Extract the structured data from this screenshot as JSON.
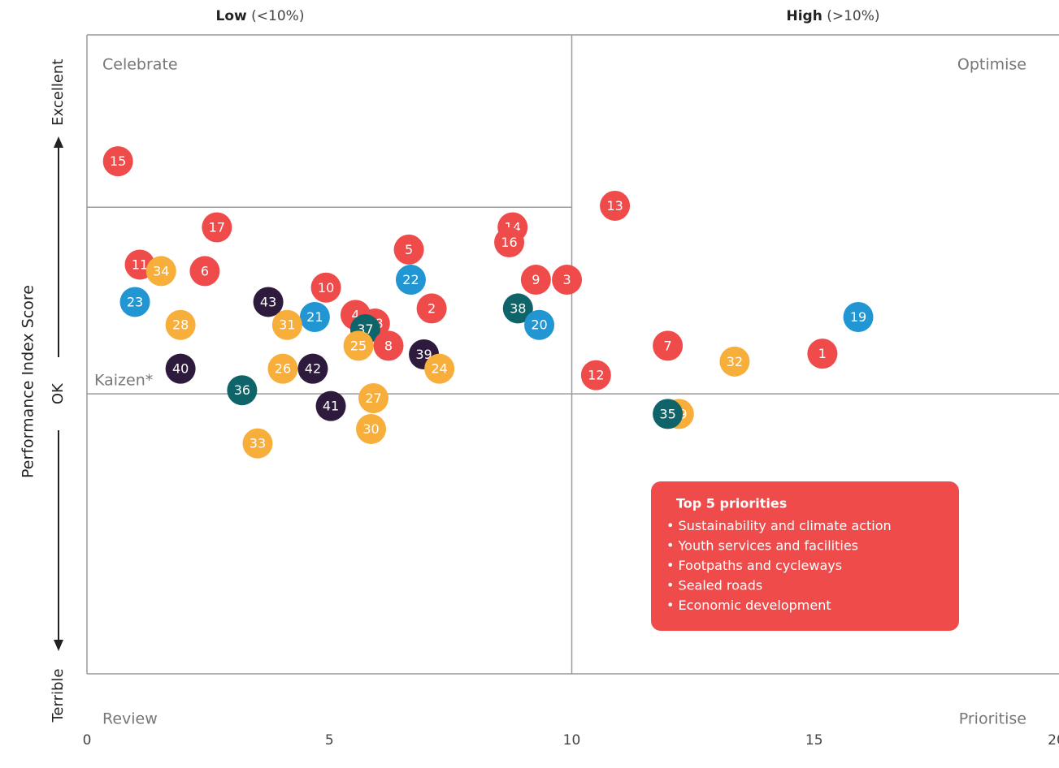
{
  "chart_data": {
    "type": "scatter",
    "y_axis_label": "Performance Index Score",
    "x_groups": [
      {
        "bold": "Low",
        "text": "(<10%)"
      },
      {
        "bold": "High",
        "text": "(>10%)"
      }
    ],
    "quadrants": {
      "top_left": "Celebrate",
      "top_right": "Optimise",
      "bottom_left": "Review",
      "bottom_right": "Prioritise",
      "middle_left": "Kaizen*"
    },
    "reference_lines": {
      "x": 10,
      "y": 0,
      "y_celebrate": 26
    },
    "xlim": [
      0,
      20
    ],
    "xticks": [
      0,
      5,
      10,
      15,
      20
    ],
    "ylim": [
      -39,
      50
    ],
    "yticks": [
      {
        "value": -42,
        "label": "Terrible"
      },
      {
        "value": 0,
        "label": "OK"
      },
      {
        "value": 42,
        "label": "Excellent"
      }
    ],
    "labels": [
      "15",
      "13",
      "17",
      "14",
      "16",
      "5",
      "11",
      "34",
      "6",
      "22",
      "9",
      "3",
      "10",
      "23",
      "43",
      "2",
      "38",
      "19",
      "21",
      "4",
      "18",
      "31",
      "28",
      "20",
      "37",
      "25",
      "8",
      "7",
      "39",
      "1",
      "32",
      "24",
      "40",
      "26",
      "42",
      "12",
      "36",
      "27",
      "41",
      "29",
      "35",
      "30",
      "33"
    ],
    "x": [
      0.64,
      10.89,
      2.68,
      8.78,
      8.71,
      6.64,
      1.09,
      1.53,
      2.43,
      6.68,
      9.26,
      9.9,
      4.93,
      0.99,
      3.74,
      7.11,
      8.89,
      15.91,
      4.7,
      5.54,
      5.94,
      4.13,
      1.93,
      9.33,
      5.74,
      5.6,
      6.22,
      11.98,
      6.95,
      15.17,
      13.36,
      7.27,
      1.93,
      4.04,
      4.66,
      10.5,
      3.2,
      5.91,
      5.03,
      12.21,
      11.98,
      5.86,
      3.52
    ],
    "values": [
      32.4,
      26.2,
      23.2,
      23.2,
      21.1,
      20.1,
      18.0,
      17.1,
      17.1,
      15.9,
      15.9,
      15.9,
      14.8,
      12.8,
      12.8,
      11.9,
      11.9,
      10.7,
      10.7,
      11.0,
      9.8,
      9.6,
      9.6,
      9.6,
      9.0,
      6.7,
      6.7,
      6.7,
      5.5,
      5.6,
      4.5,
      3.5,
      3.5,
      3.5,
      3.5,
      2.6,
      0.5,
      -0.6,
      -1.7,
      -2.8,
      -2.8,
      -4.9,
      -6.9
    ],
    "colors": [
      "#ef4b4b",
      "#ef4b4b",
      "#ef4b4b",
      "#ef4b4b",
      "#ef4b4b",
      "#ef4b4b",
      "#ef4b4b",
      "#f7ae3a",
      "#ef4b4b",
      "#2196d3",
      "#ef4b4b",
      "#ef4b4b",
      "#ef4b4b",
      "#2196d3",
      "#2e1a3c",
      "#ef4b4b",
      "#0e6469",
      "#2196d3",
      "#2196d3",
      "#ef4b4b",
      "#ef4b4b",
      "#f7ae3a",
      "#f7ae3a",
      "#2196d3",
      "#0e6469",
      "#f7ae3a",
      "#ef4b4b",
      "#ef4b4b",
      "#2e1a3c",
      "#ef4b4b",
      "#f7ae3a",
      "#f7ae3a",
      "#2e1a3c",
      "#f7ae3a",
      "#2e1a3c",
      "#ef4b4b",
      "#0e6469",
      "#f7ae3a",
      "#2e1a3c",
      "#f7ae3a",
      "#0e6469",
      "#f7ae3a",
      "#f7ae3a"
    ],
    "annotation": {
      "title": "Top 5 priorities",
      "items": [
        "Sustainability and climate action",
        "Youth services and facilities",
        "Footpaths and cycleways",
        "Sealed roads",
        "Economic development"
      ],
      "color": "#f04b4b"
    }
  }
}
